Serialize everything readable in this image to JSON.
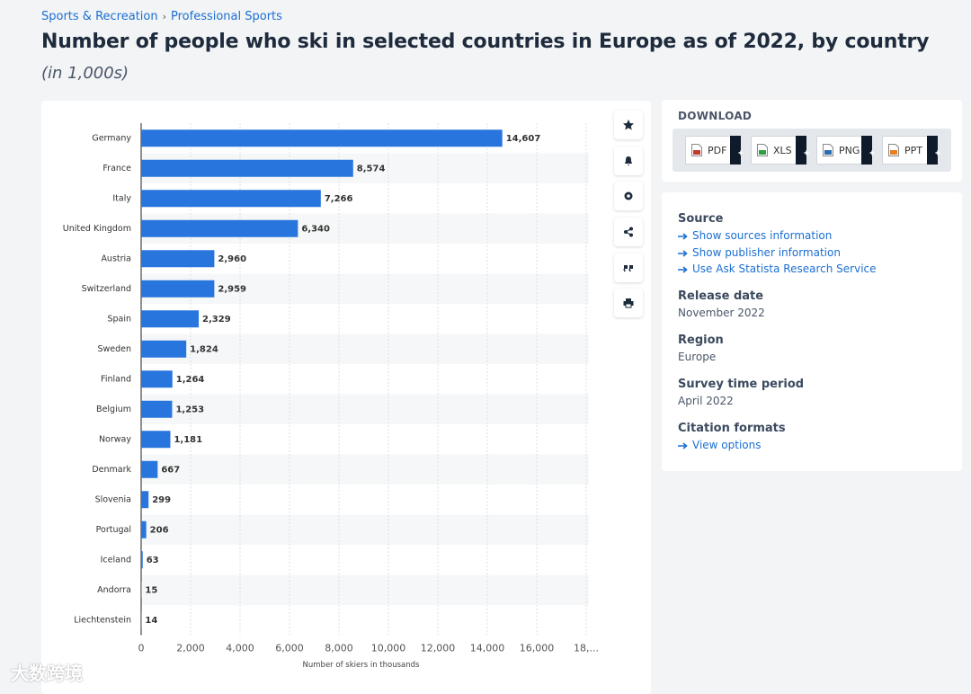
{
  "breadcrumbs": [
    "Sports & Recreation",
    "Professional Sports"
  ],
  "chart_data": {
    "type": "bar",
    "orientation": "horizontal",
    "title": "Number of people who ski in selected countries in Europe as of 2022, by country",
    "subtitle": "(in 1,000s)",
    "x_label": "Number of skiers in thousands",
    "categories": [
      "Germany",
      "France",
      "Italy",
      "United Kingdom",
      "Austria",
      "Switzerland",
      "Spain",
      "Sweden",
      "Finland",
      "Belgium",
      "Norway",
      "Denmark",
      "Slovenia",
      "Portugal",
      "Iceland",
      "Andorra",
      "Liechtenstein"
    ],
    "values": [
      14607,
      8574,
      7266,
      6340,
      2960,
      2959,
      2329,
      1824,
      1264,
      1253,
      1181,
      667,
      299,
      206,
      63,
      15,
      14
    ],
    "value_labels": [
      "14,607",
      "8,574",
      "7,266",
      "6,340",
      "2,960",
      "2,959",
      "2,329",
      "1,824",
      "1,264",
      "1,253",
      "1,181",
      "667",
      "299",
      "206",
      "63",
      "15",
      "14"
    ],
    "color": "#2876dd",
    "xlim": [
      0,
      18000
    ],
    "xticks": [
      0,
      {
        "value": 2000,
        "label": "2,000"
      },
      {
        "value": 4000,
        "label": "4,000"
      },
      {
        "value": 6000,
        "label": "6,000"
      },
      {
        "value": 8000,
        "label": "8,000"
      },
      {
        "value": 10000,
        "label": "10,000"
      },
      {
        "value": 12000,
        "label": "12,000"
      },
      {
        "value": 14000,
        "label": "14,000"
      },
      {
        "value": 16000,
        "label": "16,000"
      },
      {
        "value": 18000,
        "label": "18,..."
      }
    ],
    "grid": true
  },
  "download": {
    "title": "DOWNLOAD",
    "buttons": [
      "PDF",
      "XLS",
      "PNG",
      "PPT"
    ]
  },
  "details": [
    {
      "heading": "Source",
      "links": [
        "Show sources information",
        "Show publisher information",
        "Use Ask Statista Research Service"
      ]
    },
    {
      "heading": "Release date",
      "text": "November 2022"
    },
    {
      "heading": "Region",
      "text": "Europe"
    },
    {
      "heading": "Survey time period",
      "text": "April 2022"
    },
    {
      "heading": "Citation formats",
      "links": [
        "View options"
      ]
    }
  ],
  "watermark": "大数跨境"
}
